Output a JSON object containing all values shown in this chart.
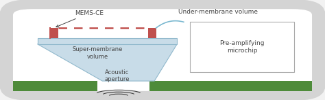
{
  "bg_color": "#f2f2f2",
  "outer_box_facecolor": "#d4d4d4",
  "inner_bg_color": "#ffffff",
  "green_color": "#4e8b3a",
  "blue_membrane_color": "#c8dce8",
  "blue_membrane_edge": "#90b8cc",
  "red_mems_color": "#c0504d",
  "pre_amp_box_edge": "#aaaaaa",
  "wire_color": "#7ab8d0",
  "text_color": "#444444",
  "title_under_membrane": "Under-membrane volume",
  "label_mems": "MEMS-CE",
  "label_super_membrane": "Super-membrane\nvolume",
  "label_acoustic": "Acoustic\naperture",
  "label_pre_amp": "Pre-amplifying\nmicrochip",
  "font_size": 6.5
}
